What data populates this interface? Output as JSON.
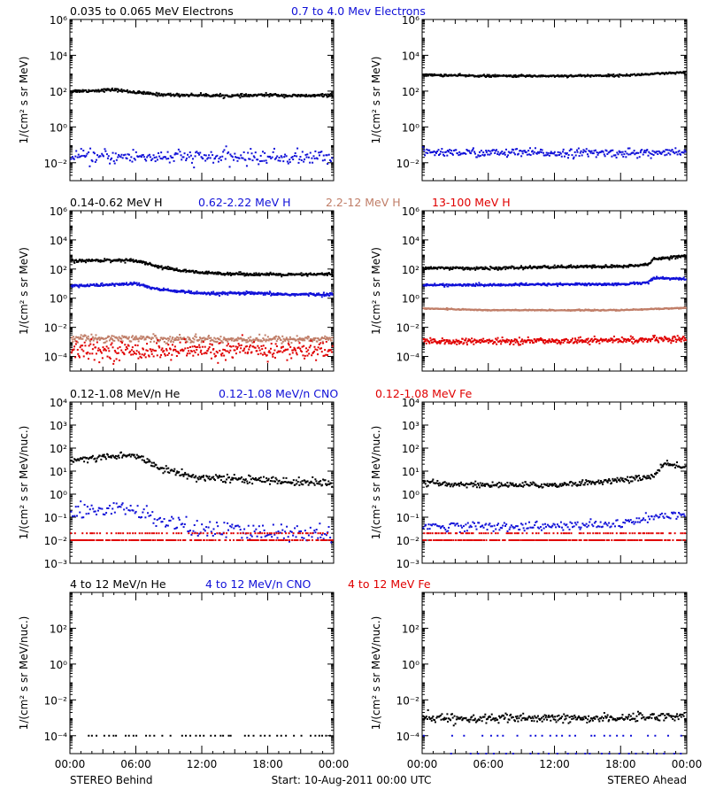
{
  "colors": {
    "black": "#000000",
    "blue": "#1010d8",
    "tan": "#c07e68",
    "red": "#e00000"
  },
  "footer": {
    "left": "STEREO Behind",
    "center": "Start: 10-Aug-2011 00:00 UTC",
    "right": "STEREO Ahead"
  },
  "x_ticks": [
    "00:00",
    "06:00",
    "12:00",
    "18:00",
    "00:00"
  ],
  "chart_data": [
    {
      "type": "scatter",
      "panel": "row1-behind",
      "log_y": true,
      "ylim": [
        0.001,
        1000000
      ],
      "ylabel": "1/(cm² s sr MeV)",
      "y_ticks": [
        {
          "v": 0.01,
          "t": "10⁻²"
        },
        {
          "v": 1,
          "t": "10⁰"
        },
        {
          "v": 100,
          "t": "10²"
        },
        {
          "v": 10000,
          "t": "10⁴"
        },
        {
          "v": 1000000,
          "t": "10⁶"
        }
      ],
      "header_labels": [
        {
          "text": "0.035 to 0.065 MeV Electrons",
          "color": "black"
        },
        {
          "text": "0.7 to 4.0 Mev Electrons",
          "color": "blue"
        }
      ],
      "series": [
        {
          "color": "black",
          "x": [
            0,
            2,
            4,
            6,
            8,
            10,
            12,
            14,
            16,
            18,
            20,
            22,
            24
          ],
          "y": [
            100,
            105,
            120,
            85,
            65,
            60,
            60,
            55,
            55,
            62,
            55,
            55,
            60
          ],
          "noise": 0.04,
          "density": 400
        },
        {
          "color": "blue",
          "x": [
            0,
            6,
            12,
            18,
            24
          ],
          "y": [
            0.02,
            0.022,
            0.02,
            0.02,
            0.02
          ],
          "noise": 0.2,
          "density": 260
        }
      ]
    },
    {
      "type": "scatter",
      "panel": "row1-ahead",
      "log_y": true,
      "ylim": [
        0.001,
        1000000
      ],
      "ylabel": "1/(cm² s sr MeV)",
      "y_ticks": [
        {
          "v": 0.01,
          "t": "10⁻²"
        },
        {
          "v": 1,
          "t": "10⁰"
        },
        {
          "v": 100,
          "t": "10²"
        },
        {
          "v": 10000,
          "t": "10⁴"
        },
        {
          "v": 1000000,
          "t": "10⁶"
        }
      ],
      "header_labels": [],
      "series": [
        {
          "color": "black",
          "x": [
            0,
            6,
            12,
            18,
            21,
            24
          ],
          "y": [
            800,
            700,
            700,
            750,
            900,
            1100
          ],
          "noise": 0.03,
          "density": 400
        },
        {
          "color": "blue",
          "x": [
            0,
            6,
            12,
            18,
            24
          ],
          "y": [
            0.04,
            0.035,
            0.035,
            0.035,
            0.035
          ],
          "noise": 0.12,
          "density": 300
        }
      ]
    },
    {
      "type": "scatter",
      "panel": "row2-behind",
      "log_y": true,
      "ylim": [
        1e-05,
        1000000
      ],
      "ylabel": "1/(cm² s sr MeV)",
      "y_ticks": [
        {
          "v": 0.0001,
          "t": "10⁻⁴"
        },
        {
          "v": 0.01,
          "t": "10⁻²"
        },
        {
          "v": 1,
          "t": "10⁰"
        },
        {
          "v": 100,
          "t": "10²"
        },
        {
          "v": 10000,
          "t": "10⁴"
        },
        {
          "v": 1000000,
          "t": "10⁶"
        }
      ],
      "header_labels": [
        {
          "text": "0.14-0.62 MeV H",
          "color": "black"
        },
        {
          "text": "0.62-2.22 MeV H",
          "color": "blue"
        },
        {
          "text": "2.2-12 MeV H",
          "color": "tan"
        },
        {
          "text": "13-100 MeV H",
          "color": "red"
        }
      ],
      "series": [
        {
          "color": "black",
          "x": [
            0,
            3,
            6,
            8,
            10,
            12,
            16,
            20,
            24
          ],
          "y": [
            350,
            400,
            400,
            150,
            80,
            55,
            45,
            40,
            45
          ],
          "noise": 0.05,
          "density": 420
        },
        {
          "color": "blue",
          "x": [
            0,
            3,
            6,
            8,
            10,
            12,
            16,
            20,
            24
          ],
          "y": [
            7,
            8,
            10,
            4,
            3,
            2,
            2.2,
            1.8,
            1.8
          ],
          "noise": 0.05,
          "density": 420
        },
        {
          "color": "tan",
          "x": [
            0,
            6,
            12,
            18,
            24
          ],
          "y": [
            0.0018,
            0.0018,
            0.0015,
            0.0015,
            0.0016
          ],
          "noise": 0.12,
          "density": 380
        },
        {
          "color": "red",
          "x": [
            0,
            6,
            12,
            18,
            24
          ],
          "y": [
            0.00025,
            0.00025,
            0.00025,
            0.00025,
            0.00025
          ],
          "noise": 0.3,
          "density": 360
        }
      ]
    },
    {
      "type": "scatter",
      "panel": "row2-ahead",
      "log_y": true,
      "ylim": [
        1e-05,
        1000000
      ],
      "ylabel": "1/(cm² s sr MeV)",
      "y_ticks": [
        {
          "v": 0.0001,
          "t": "10⁻⁴"
        },
        {
          "v": 0.01,
          "t": "10⁻²"
        },
        {
          "v": 1,
          "t": "10⁰"
        },
        {
          "v": 100,
          "t": "10²"
        },
        {
          "v": 10000,
          "t": "10⁴"
        },
        {
          "v": 1000000,
          "t": "10⁶"
        }
      ],
      "header_labels": [],
      "series": [
        {
          "color": "black",
          "x": [
            0,
            6,
            12,
            18,
            20.5,
            21,
            24
          ],
          "y": [
            120,
            110,
            140,
            150,
            200,
            500,
            800
          ],
          "noise": 0.05,
          "density": 420
        },
        {
          "color": "blue",
          "x": [
            0,
            6,
            12,
            18,
            20.5,
            21,
            24
          ],
          "y": [
            8,
            8,
            9,
            9,
            12,
            25,
            20
          ],
          "noise": 0.04,
          "density": 420
        },
        {
          "color": "tan",
          "x": [
            0,
            6,
            12,
            18,
            24
          ],
          "y": [
            0.2,
            0.15,
            0.15,
            0.15,
            0.22
          ],
          "noise": 0.02,
          "density": 420
        },
        {
          "color": "red",
          "x": [
            0,
            6,
            12,
            18,
            24
          ],
          "y": [
            0.001,
            0.0011,
            0.0012,
            0.0013,
            0.0016
          ],
          "noise": 0.1,
          "density": 400
        }
      ]
    },
    {
      "type": "scatter",
      "panel": "row3-behind",
      "log_y": true,
      "ylim": [
        0.001,
        10000
      ],
      "ylabel": "1/(cm² s sr MeV/nuc.)",
      "y_ticks": [
        {
          "v": 0.001,
          "t": "10⁻³"
        },
        {
          "v": 0.01,
          "t": "10⁻²"
        },
        {
          "v": 0.1,
          "t": "10⁻¹"
        },
        {
          "v": 1,
          "t": "10⁰"
        },
        {
          "v": 10,
          "t": "10¹"
        },
        {
          "v": 100,
          "t": "10²"
        },
        {
          "v": 1000,
          "t": "10³"
        },
        {
          "v": 10000,
          "t": "10⁴"
        }
      ],
      "header_labels": [
        {
          "text": "0.12-1.08 MeV/n He",
          "color": "black"
        },
        {
          "text": "0.12-1.08 MeV/n CNO",
          "color": "blue"
        },
        {
          "text": "0.12-1.08 MeV Fe",
          "color": "red"
        }
      ],
      "series": [
        {
          "color": "black",
          "x": [
            0,
            3,
            6,
            8,
            10,
            12,
            16,
            20,
            24
          ],
          "y": [
            30,
            40,
            50,
            15,
            8,
            5,
            4.5,
            3.5,
            3
          ],
          "noise": 0.08,
          "density": 300
        },
        {
          "color": "blue",
          "x": [
            0,
            6,
            8,
            10,
            12,
            18,
            24
          ],
          "y": [
            0.2,
            0.2,
            0.08,
            0.04,
            0.03,
            0.02,
            0.02
          ],
          "noise": 0.2,
          "density": 200
        },
        {
          "color": "red",
          "x": [
            0,
            24
          ],
          "y": [
            0.01,
            0.01
          ],
          "noise": 0,
          "density": 220
        },
        {
          "color": "red",
          "x": [
            0,
            24
          ],
          "y": [
            0.02,
            0.02
          ],
          "noise": 0,
          "density": 110
        }
      ]
    },
    {
      "type": "scatter",
      "panel": "row3-ahead",
      "log_y": true,
      "ylim": [
        0.001,
        10000
      ],
      "ylabel": "1/(cm² s sr MeV/nuc.)",
      "y_ticks": [
        {
          "v": 0.001,
          "t": "10⁻³"
        },
        {
          "v": 0.01,
          "t": "10⁻²"
        },
        {
          "v": 0.1,
          "t": "10⁻¹"
        },
        {
          "v": 1,
          "t": "10⁰"
        },
        {
          "v": 10,
          "t": "10¹"
        },
        {
          "v": 100,
          "t": "10²"
        },
        {
          "v": 1000,
          "t": "10³"
        },
        {
          "v": 10000,
          "t": "10⁴"
        }
      ],
      "header_labels": [],
      "series": [
        {
          "color": "black",
          "x": [
            0,
            6,
            12,
            18,
            21,
            22,
            24
          ],
          "y": [
            3,
            2.5,
            2.5,
            4,
            6,
            20,
            15
          ],
          "noise": 0.06,
          "density": 320
        },
        {
          "color": "blue",
          "x": [
            0,
            6,
            12,
            18,
            21,
            24
          ],
          "y": [
            0.04,
            0.04,
            0.04,
            0.05,
            0.1,
            0.12
          ],
          "noise": 0.1,
          "density": 220
        },
        {
          "color": "red",
          "x": [
            0,
            24
          ],
          "y": [
            0.01,
            0.01
          ],
          "noise": 0,
          "density": 240
        },
        {
          "color": "red",
          "x": [
            0,
            24
          ],
          "y": [
            0.02,
            0.02
          ],
          "noise": 0,
          "density": 130
        }
      ]
    },
    {
      "type": "scatter",
      "panel": "row4-behind",
      "log_y": true,
      "ylim": [
        1e-05,
        10000
      ],
      "ylabel": "1/(cm² s sr MeV/nuc.)",
      "y_ticks": [
        {
          "v": 0.0001,
          "t": "10⁻⁴"
        },
        {
          "v": 0.01,
          "t": "10⁻²"
        },
        {
          "v": 1,
          "t": "10⁰"
        },
        {
          "v": 100,
          "t": "10²"
        }
      ],
      "header_labels": [
        {
          "text": "4 to 12 MeV/n He",
          "color": "black"
        },
        {
          "text": "4 to 12 MeV/n CNO",
          "color": "blue"
        },
        {
          "text": "4 to 12 MeV Fe",
          "color": "red"
        }
      ],
      "series": [
        {
          "color": "black",
          "x": [
            1.5,
            24
          ],
          "y": [
            0.0001,
            0.0001
          ],
          "noise": 0,
          "density": 60
        }
      ]
    },
    {
      "type": "scatter",
      "panel": "row4-ahead",
      "log_y": true,
      "ylim": [
        1e-05,
        10000
      ],
      "ylabel": "1/(cm² s sr MeV/nuc.)",
      "y_ticks": [
        {
          "v": 0.0001,
          "t": "10⁻⁴"
        },
        {
          "v": 0.01,
          "t": "10⁻²"
        },
        {
          "v": 1,
          "t": "10⁰"
        },
        {
          "v": 100,
          "t": "10²"
        }
      ],
      "header_labels": [],
      "series": [
        {
          "color": "black",
          "x": [
            0,
            6,
            12,
            18,
            24
          ],
          "y": [
            0.001,
            0.0009,
            0.0009,
            0.001,
            0.0013
          ],
          "noise": 0.12,
          "density": 320
        },
        {
          "color": "blue",
          "x": [
            0,
            24
          ],
          "y": [
            0.0001,
            0.0001
          ],
          "noise": 0,
          "density": 40
        },
        {
          "color": "blue",
          "x": [
            0,
            24
          ],
          "y": [
            1e-05,
            1e-05
          ],
          "noise": 0,
          "density": 30
        }
      ]
    }
  ]
}
